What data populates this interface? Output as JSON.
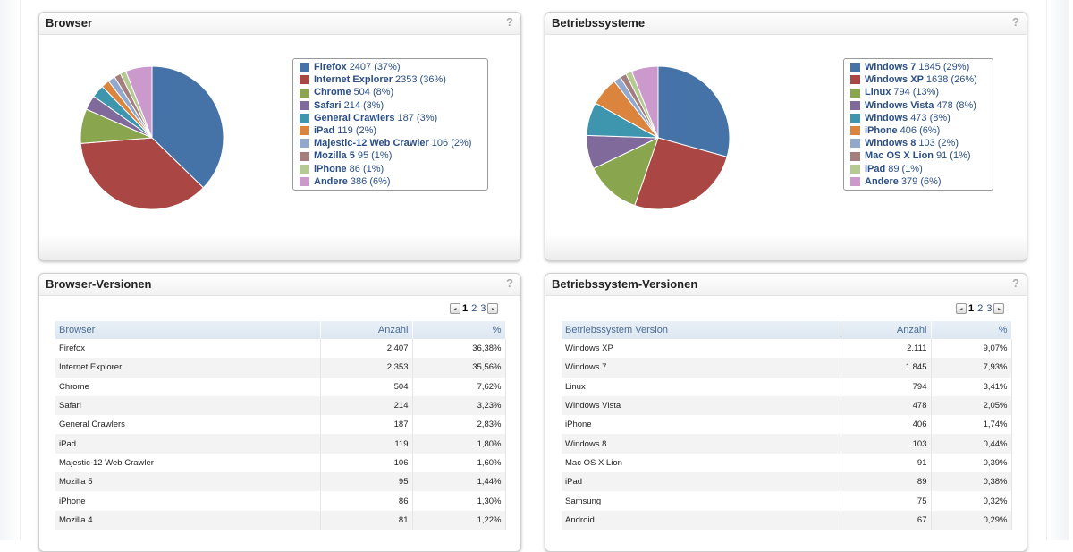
{
  "widgets": {
    "browser": {
      "title": "Browser",
      "help": "?",
      "legend": [
        {
          "name": "Firefox",
          "value": "2407 (37%)",
          "pct": 37,
          "color": "#4572a7"
        },
        {
          "name": "Internet Explorer",
          "value": "2353 (36%)",
          "pct": 36,
          "color": "#aa4643"
        },
        {
          "name": "Chrome",
          "value": "504 (8%)",
          "pct": 8,
          "color": "#89a54e"
        },
        {
          "name": "Safari",
          "value": "214 (3%)",
          "pct": 3,
          "color": "#80699b"
        },
        {
          "name": "General Crawlers",
          "value": "187 (3%)",
          "pct": 3,
          "color": "#3d96ae"
        },
        {
          "name": "iPad",
          "value": "119 (2%)",
          "pct": 2,
          "color": "#db843d"
        },
        {
          "name": "Majestic-12 Web Crawler",
          "value": "106 (2%)",
          "pct": 2,
          "color": "#92a8cd"
        },
        {
          "name": "Mozilla 5",
          "value": "95 (1%)",
          "pct": 1,
          "color": "#a47d7c"
        },
        {
          "name": "iPhone",
          "value": "86 (1%)",
          "pct": 1,
          "color": "#b5ca92"
        },
        {
          "name": "Andere",
          "value": "386 (6%)",
          "pct": 6,
          "color": "#cc99cc"
        }
      ]
    },
    "os": {
      "title": "Betriebssysteme",
      "help": "?",
      "legend": [
        {
          "name": "Windows 7",
          "value": "1845 (29%)",
          "pct": 29,
          "color": "#4572a7"
        },
        {
          "name": "Windows XP",
          "value": "1638 (26%)",
          "pct": 26,
          "color": "#aa4643"
        },
        {
          "name": "Linux",
          "value": "794 (13%)",
          "pct": 13,
          "color": "#89a54e"
        },
        {
          "name": "Windows Vista",
          "value": "478 (8%)",
          "pct": 8,
          "color": "#80699b"
        },
        {
          "name": "Windows",
          "value": "473 (8%)",
          "pct": 8,
          "color": "#3d96ae"
        },
        {
          "name": "iPhone",
          "value": "406 (6%)",
          "pct": 6,
          "color": "#db843d"
        },
        {
          "name": "Windows 8",
          "value": "103 (2%)",
          "pct": 2,
          "color": "#92a8cd"
        },
        {
          "name": "Mac OS X Lion",
          "value": "91 (1%)",
          "pct": 1,
          "color": "#a47d7c"
        },
        {
          "name": "iPad",
          "value": "89 (1%)",
          "pct": 1,
          "color": "#b5ca92"
        },
        {
          "name": "Andere",
          "value": "379 (6%)",
          "pct": 6,
          "color": "#cc99cc"
        }
      ]
    },
    "browser_versions": {
      "title": "Browser-Versionen",
      "help": "?",
      "pager": {
        "prev": "◂",
        "pages": [
          "1",
          "2",
          "3"
        ],
        "current": "1",
        "next": "▸"
      },
      "columns": [
        "Browser",
        "Anzahl",
        "%"
      ],
      "rows": [
        [
          "Firefox",
          "2.407",
          "36,38%"
        ],
        [
          "Internet Explorer",
          "2.353",
          "35,56%"
        ],
        [
          "Chrome",
          "504",
          "7,62%"
        ],
        [
          "Safari",
          "214",
          "3,23%"
        ],
        [
          "General Crawlers",
          "187",
          "2,83%"
        ],
        [
          "iPad",
          "119",
          "1,80%"
        ],
        [
          "Majestic-12 Web Crawler",
          "106",
          "1,60%"
        ],
        [
          "Mozilla 5",
          "95",
          "1,44%"
        ],
        [
          "iPhone",
          "86",
          "1,30%"
        ],
        [
          "Mozilla 4",
          "81",
          "1,22%"
        ]
      ]
    },
    "os_versions": {
      "title": "Betriebssystem-Versionen",
      "help": "?",
      "pager": {
        "prev": "◂",
        "pages": [
          "1",
          "2",
          "3"
        ],
        "current": "1",
        "next": "▸"
      },
      "columns": [
        "Betriebssystem Version",
        "Anzahl",
        "%"
      ],
      "rows": [
        [
          "Windows XP",
          "2.111",
          "9,07%"
        ],
        [
          "Windows 7",
          "1.845",
          "7,93%"
        ],
        [
          "Linux",
          "794",
          "3,41%"
        ],
        [
          "Windows Vista",
          "478",
          "2,05%"
        ],
        [
          "iPhone",
          "406",
          "1,74%"
        ],
        [
          "Windows 8",
          "103",
          "0,44%"
        ],
        [
          "Mac OS X Lion",
          "91",
          "0,39%"
        ],
        [
          "iPad",
          "89",
          "0,38%"
        ],
        [
          "Samsung",
          "75",
          "0,32%"
        ],
        [
          "Android",
          "67",
          "0,29%"
        ]
      ]
    }
  },
  "chart_data": [
    {
      "type": "pie",
      "title": "Browser",
      "categories": [
        "Firefox",
        "Internet Explorer",
        "Chrome",
        "Safari",
        "General Crawlers",
        "iPad",
        "Majestic-12 Web Crawler",
        "Mozilla 5",
        "iPhone",
        "Andere"
      ],
      "values": [
        2407,
        2353,
        504,
        214,
        187,
        119,
        106,
        95,
        86,
        386
      ],
      "legend": "right"
    },
    {
      "type": "pie",
      "title": "Betriebssysteme",
      "categories": [
        "Windows 7",
        "Windows XP",
        "Linux",
        "Windows Vista",
        "Windows",
        "iPhone",
        "Windows 8",
        "Mac OS X Lion",
        "iPad",
        "Andere"
      ],
      "values": [
        1845,
        1638,
        794,
        478,
        473,
        406,
        103,
        91,
        89,
        379
      ],
      "legend": "right"
    }
  ]
}
